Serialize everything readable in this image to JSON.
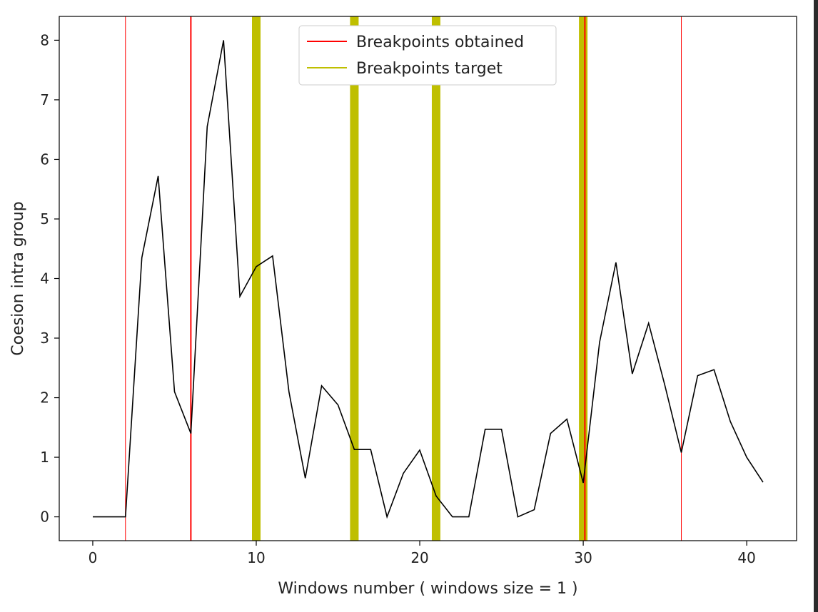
{
  "chart_data": {
    "type": "line",
    "xlabel": "Windows number ( windows size = 1 )",
    "ylabel": "Coesion intra group",
    "xlim": [
      -2.05,
      43.05
    ],
    "ylim": [
      -0.4,
      8.4
    ],
    "xticks": [
      0,
      10,
      20,
      30,
      40
    ],
    "yticks": [
      0,
      1,
      2,
      3,
      4,
      5,
      6,
      7,
      8
    ],
    "grid": false,
    "legend_position": "top-center",
    "series": [
      {
        "x": [
          0,
          1,
          2,
          3,
          4,
          5,
          6,
          7,
          8,
          9,
          10,
          11,
          12,
          13,
          14,
          15,
          16,
          17,
          18,
          19,
          20,
          21,
          22,
          23,
          24,
          25,
          26,
          27,
          28,
          29,
          30,
          31,
          32,
          33,
          34,
          35,
          36,
          37,
          38,
          39,
          40,
          41
        ],
        "y": [
          0,
          0,
          0,
          4.35,
          5.72,
          2.1,
          1.4,
          6.55,
          8.0,
          3.7,
          4.2,
          4.38,
          2.1,
          0.65,
          2.2,
          1.88,
          1.13,
          1.13,
          0,
          0.73,
          1.12,
          0.35,
          0,
          0,
          1.47,
          1.47,
          0,
          0.12,
          1.4,
          1.64,
          0.57,
          2.93,
          4.27,
          2.4,
          3.25,
          2.2,
          1.08,
          2.37,
          2.47,
          1.6,
          1.0,
          0.58
        ],
        "color": "#000000"
      }
    ],
    "vlines": [
      {
        "name": "Breakpoints obtained",
        "color": "#ff0000",
        "x": [
          2,
          6,
          30.1,
          36
        ],
        "widths": [
          1,
          2,
          2,
          1
        ]
      },
      {
        "name": "Breakpoints target",
        "color": "#bfbf00",
        "x": [
          10,
          16,
          21,
          30
        ],
        "widths": [
          12,
          12,
          12,
          12
        ]
      }
    ]
  }
}
